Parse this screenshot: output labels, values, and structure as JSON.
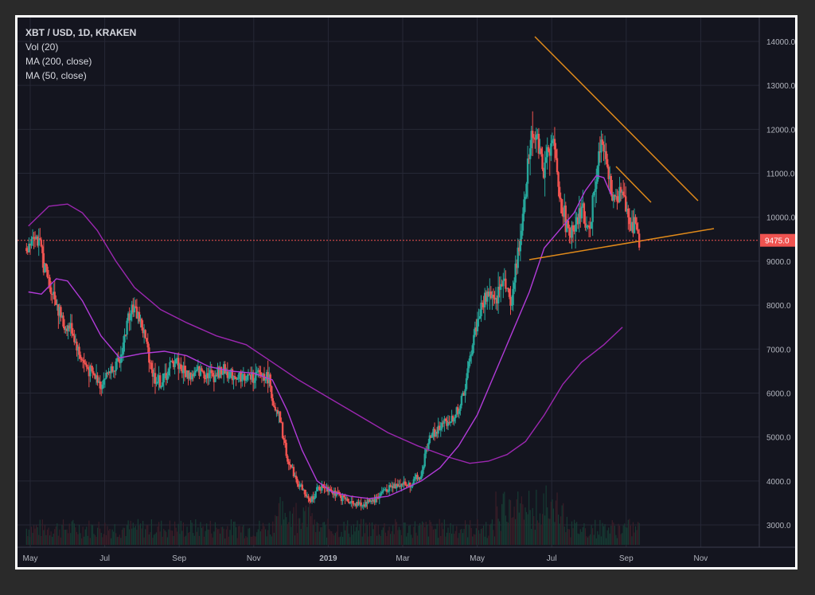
{
  "chart_data": {
    "type": "candlestick",
    "symbol_line": "XBT / USD, 1D, KRAKEN",
    "indicators": [
      "Vol (20)",
      "MA (200, close)",
      "MA (50, close)"
    ],
    "ylim": [
      2700,
      14400
    ],
    "y_ticks": [
      "14000.0",
      "13000.0",
      "12000.0",
      "11000.0",
      "10000.0",
      "9000.0",
      "8000.0",
      "7000.0",
      "6000.0",
      "5000.0",
      "4000.0",
      "3000.0"
    ],
    "y_tick_values": [
      14000,
      13000,
      12000,
      11000,
      10000,
      9000,
      8000,
      7000,
      6000,
      5000,
      4000,
      3000
    ],
    "x_ticks": [
      {
        "label": "May",
        "month": 0
      },
      {
        "label": "Jul",
        "month": 2
      },
      {
        "label": "Sep",
        "month": 4
      },
      {
        "label": "Nov",
        "month": 6
      },
      {
        "label": "2019",
        "month": 8,
        "bold": true
      },
      {
        "label": "Mar",
        "month": 10
      },
      {
        "label": "May",
        "month": 12
      },
      {
        "label": "Jul",
        "month": 14
      },
      {
        "label": "Sep",
        "month": 16
      },
      {
        "label": "Nov",
        "month": 18
      }
    ],
    "current_price": {
      "value": 9475,
      "label": "9475.0"
    },
    "price_path": [
      [
        -0.1,
        9300
      ],
      [
        0.1,
        9700
      ],
      [
        0.3,
        9200
      ],
      [
        0.5,
        8500
      ],
      [
        0.7,
        8100
      ],
      [
        0.9,
        7500
      ],
      [
        1.1,
        7500
      ],
      [
        1.3,
        6900
      ],
      [
        1.5,
        6600
      ],
      [
        1.7,
        6400
      ],
      [
        1.9,
        6200
      ],
      [
        2.1,
        6500
      ],
      [
        2.4,
        6700
      ],
      [
        2.7,
        8000
      ],
      [
        2.9,
        7800
      ],
      [
        3.1,
        7200
      ],
      [
        3.3,
        6400
      ],
      [
        3.5,
        6200
      ],
      [
        3.7,
        6500
      ],
      [
        3.9,
        6800
      ],
      [
        4.1,
        6500
      ],
      [
        4.3,
        6400
      ],
      [
        4.6,
        6500
      ],
      [
        4.9,
        6400
      ],
      [
        5.2,
        6500
      ],
      [
        5.5,
        6400
      ],
      [
        5.8,
        6350
      ],
      [
        6.1,
        6400
      ],
      [
        6.4,
        6400
      ],
      [
        6.55,
        5600
      ],
      [
        6.7,
        5400
      ],
      [
        6.9,
        4500
      ],
      [
        7.1,
        4100
      ],
      [
        7.3,
        3800
      ],
      [
        7.5,
        3500
      ],
      [
        7.7,
        3800
      ],
      [
        7.9,
        3900
      ],
      [
        8.1,
        3800
      ],
      [
        8.3,
        3650
      ],
      [
        8.5,
        3550
      ],
      [
        8.7,
        3500
      ],
      [
        8.9,
        3450
      ],
      [
        9.1,
        3550
      ],
      [
        9.3,
        3600
      ],
      [
        9.5,
        3800
      ],
      [
        9.7,
        3850
      ],
      [
        9.9,
        3950
      ],
      [
        10.1,
        3900
      ],
      [
        10.3,
        4000
      ],
      [
        10.5,
        4100
      ],
      [
        10.7,
        5000
      ],
      [
        10.9,
        5100
      ],
      [
        11.1,
        5300
      ],
      [
        11.3,
        5400
      ],
      [
        11.5,
        5600
      ],
      [
        11.7,
        6200
      ],
      [
        11.9,
        7300
      ],
      [
        12.1,
        7900
      ],
      [
        12.3,
        8300
      ],
      [
        12.5,
        8000
      ],
      [
        12.7,
        8700
      ],
      [
        12.9,
        8000
      ],
      [
        13.1,
        9200
      ],
      [
        13.3,
        10700
      ],
      [
        13.45,
        12000
      ],
      [
        13.6,
        11800
      ],
      [
        13.8,
        11000
      ],
      [
        14.0,
        12000
      ],
      [
        14.2,
        10500
      ],
      [
        14.4,
        9800
      ],
      [
        14.6,
        9500
      ],
      [
        14.8,
        10200
      ],
      [
        15.0,
        9700
      ],
      [
        15.2,
        11000
      ],
      [
        15.35,
        11700
      ],
      [
        15.5,
        11000
      ],
      [
        15.7,
        10300
      ],
      [
        15.9,
        10700
      ],
      [
        16.1,
        9900
      ],
      [
        16.25,
        9700
      ],
      [
        16.35,
        9475
      ]
    ],
    "ma50": [
      [
        -0.05,
        8300
      ],
      [
        0.3,
        8250
      ],
      [
        0.7,
        8600
      ],
      [
        1.0,
        8550
      ],
      [
        1.4,
        8100
      ],
      [
        1.9,
        7300
      ],
      [
        2.4,
        6800
      ],
      [
        3.0,
        6900
      ],
      [
        3.6,
        6950
      ],
      [
        4.2,
        6850
      ],
      [
        4.8,
        6600
      ],
      [
        5.4,
        6500
      ],
      [
        6.0,
        6450
      ],
      [
        6.5,
        6300
      ],
      [
        6.9,
        5600
      ],
      [
        7.3,
        4700
      ],
      [
        7.7,
        4000
      ],
      [
        8.1,
        3750
      ],
      [
        8.6,
        3650
      ],
      [
        9.1,
        3600
      ],
      [
        9.6,
        3650
      ],
      [
        10.0,
        3800
      ],
      [
        10.5,
        4000
      ],
      [
        11.0,
        4300
      ],
      [
        11.5,
        4800
      ],
      [
        12.0,
        5500
      ],
      [
        12.5,
        6500
      ],
      [
        13.0,
        7500
      ],
      [
        13.4,
        8300
      ],
      [
        13.8,
        9300
      ],
      [
        14.2,
        9700
      ],
      [
        14.6,
        10100
      ],
      [
        14.9,
        10600
      ],
      [
        15.2,
        10950
      ],
      [
        15.4,
        10900
      ],
      [
        15.6,
        10500
      ]
    ],
    "ma200": [
      [
        -0.05,
        9800
      ],
      [
        0.5,
        10250
      ],
      [
        1.0,
        10300
      ],
      [
        1.4,
        10100
      ],
      [
        1.8,
        9700
      ],
      [
        2.3,
        9000
      ],
      [
        2.8,
        8400
      ],
      [
        3.5,
        7900
      ],
      [
        4.2,
        7600
      ],
      [
        5.0,
        7300
      ],
      [
        5.8,
        7100
      ],
      [
        6.5,
        6700
      ],
      [
        7.2,
        6300
      ],
      [
        8.0,
        5900
      ],
      [
        8.8,
        5500
      ],
      [
        9.6,
        5100
      ],
      [
        10.4,
        4800
      ],
      [
        11.2,
        4550
      ],
      [
        11.8,
        4400
      ],
      [
        12.3,
        4450
      ],
      [
        12.8,
        4600
      ],
      [
        13.3,
        4900
      ],
      [
        13.8,
        5500
      ],
      [
        14.3,
        6200
      ],
      [
        14.8,
        6700
      ],
      [
        15.4,
        7100
      ],
      [
        15.9,
        7500
      ]
    ]
  }
}
